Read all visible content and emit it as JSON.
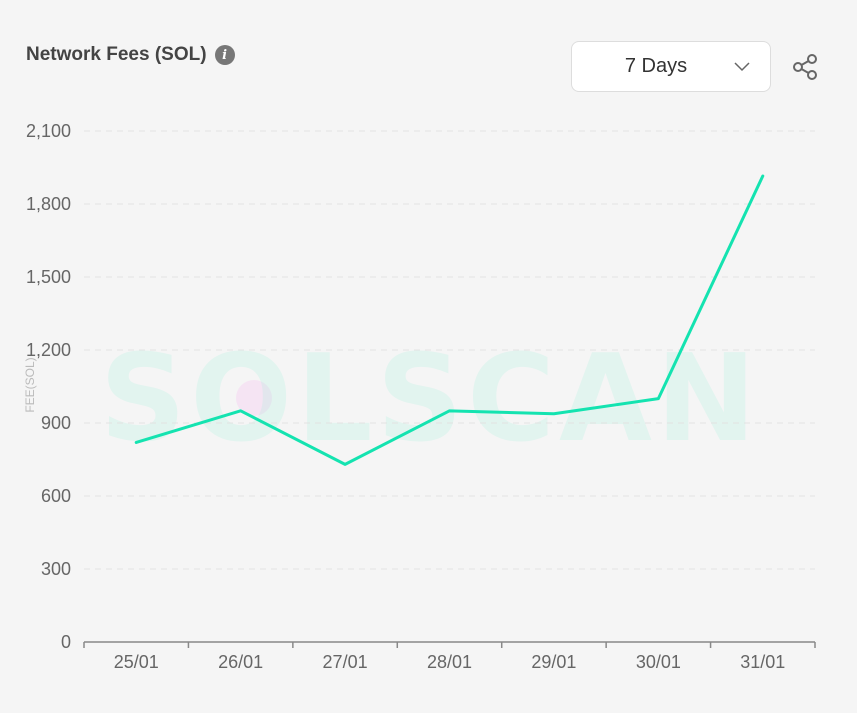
{
  "header": {
    "title": "Network Fees (SOL)",
    "info_icon": "info-icon",
    "info_glyph": "i"
  },
  "range_select": {
    "value": "7 Days",
    "icon": "chevron-down-icon"
  },
  "share": {
    "icon": "share-icon"
  },
  "watermark": "SOLSCAN",
  "chart_data": {
    "type": "line",
    "title": "Network Fees (SOL)",
    "xlabel": "",
    "ylabel": "FEE(SOL)",
    "categories": [
      "25/01",
      "26/01",
      "27/01",
      "28/01",
      "29/01",
      "30/01",
      "31/01"
    ],
    "series": [
      {
        "values": [
          820,
          950,
          730,
          950,
          938,
          1000,
          1915
        ],
        "color": "#14e3b0"
      }
    ],
    "y_ticks": [
      0,
      300,
      600,
      900,
      1200,
      1500,
      1800,
      2100
    ],
    "y_tick_labels": [
      "0",
      "300",
      "600",
      "900",
      "1,200",
      "1,500",
      "1,800",
      "2,100"
    ],
    "ylim": [
      0,
      2100
    ],
    "grid": true,
    "grid_style": "dashed",
    "legend": "none"
  }
}
